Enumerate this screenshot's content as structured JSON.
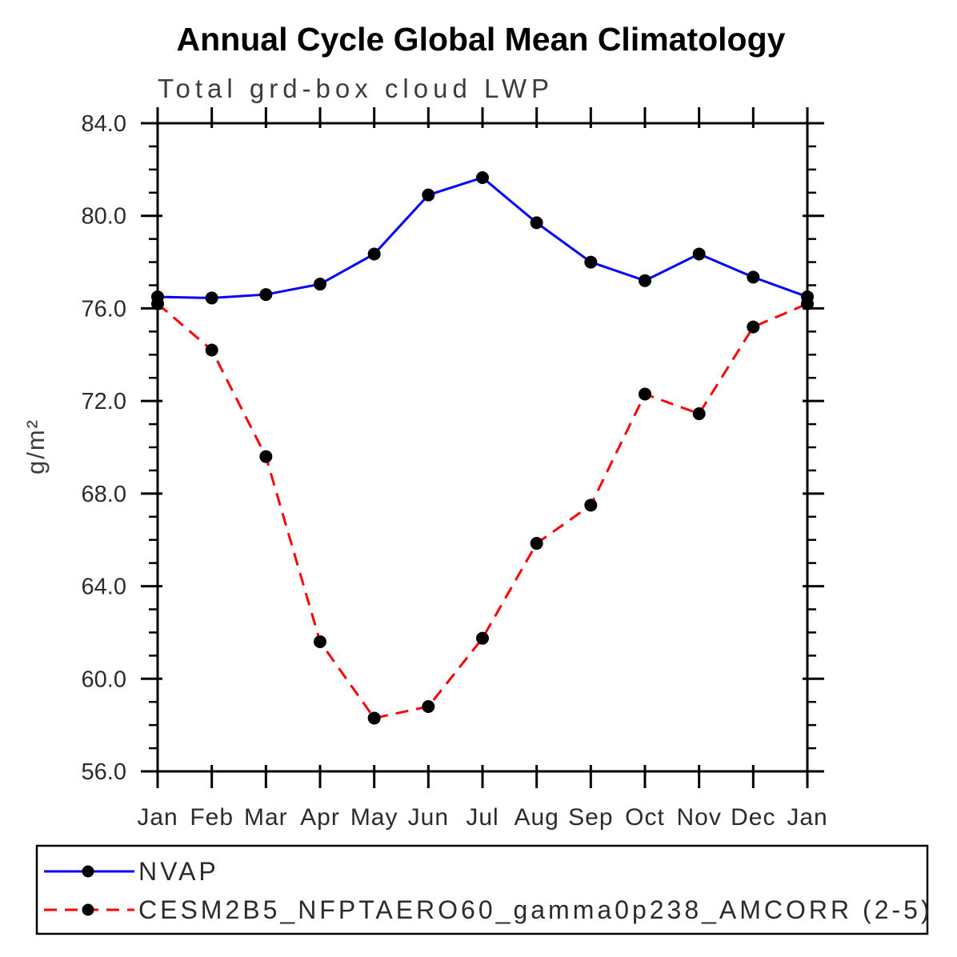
{
  "page": {
    "background": "#ffffff"
  },
  "chart_data": {
    "type": "line",
    "title": "Annual Cycle Global Mean Climatology",
    "subtitle": "Total grd-box cloud LWP",
    "ylabel": "g/m²",
    "xlabel": "",
    "categories": [
      "Jan",
      "Feb",
      "Mar",
      "Apr",
      "May",
      "Jun",
      "Jul",
      "Aug",
      "Sep",
      "Oct",
      "Nov",
      "Dec",
      "Jan"
    ],
    "ylim": [
      56.0,
      84.0
    ],
    "ytick_major": 4.0,
    "ytick_minor": 1.0,
    "ytick_labels": [
      "56.0",
      "60.0",
      "64.0",
      "68.0",
      "72.0",
      "76.0",
      "80.0",
      "84.0"
    ],
    "grid": "off",
    "legend_position": "bottom-box",
    "frame_color": "#000000",
    "series": [
      {
        "name": "NVAP",
        "color": "#0000ff",
        "line_style": "solid",
        "marker": "filled-circle",
        "marker_color": "#000000",
        "values": [
          76.5,
          76.45,
          76.6,
          77.05,
          78.35,
          80.9,
          81.65,
          79.7,
          78.0,
          77.2,
          78.35,
          77.35,
          76.5
        ]
      },
      {
        "name": "CESM2B5_NFPTAERO60_gamma0p238_AMCORR (2-5)",
        "color": "#ff0000",
        "line_style": "dashed",
        "marker": "filled-circle",
        "marker_color": "#000000",
        "values": [
          76.2,
          74.2,
          69.6,
          61.6,
          58.3,
          58.8,
          61.75,
          65.85,
          67.5,
          72.3,
          71.45,
          75.2,
          76.2
        ]
      }
    ]
  }
}
